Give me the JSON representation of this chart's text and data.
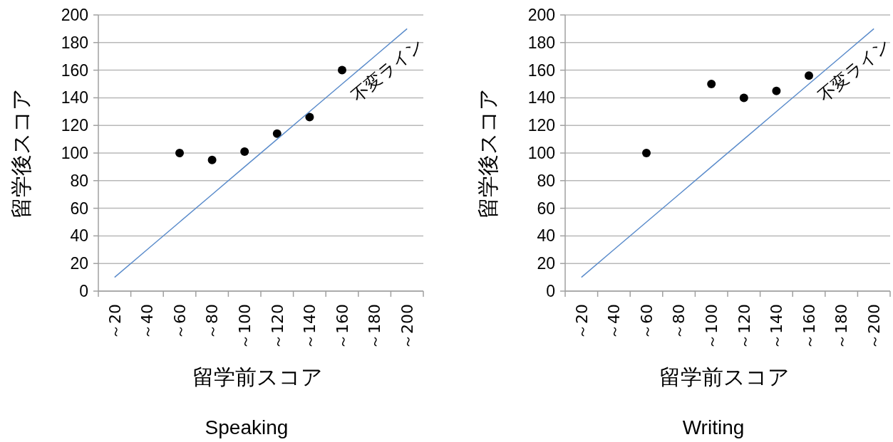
{
  "chart_data": [
    {
      "type": "scatter",
      "title": "Speaking",
      "xlabel": "留学前スコア",
      "ylabel": "留学後スコア",
      "categories": [
        "～20",
        "～40",
        "～60",
        "～80",
        "～100",
        "～120",
        "～140",
        "～160",
        "～180",
        "～200"
      ],
      "ylim": [
        0,
        200
      ],
      "yticks": [
        0,
        20,
        40,
        60,
        80,
        100,
        120,
        140,
        160,
        180,
        200
      ],
      "grid": "y",
      "marker": "circle",
      "series": [
        {
          "color": "#000000",
          "values": [
            null,
            null,
            100,
            95,
            101,
            114,
            126,
            160,
            null,
            null
          ]
        },
        {
          "type": "line",
          "name": "不変ライン",
          "color": "#5b8ccb",
          "marker": "none",
          "values": [
            10,
            30,
            50,
            70,
            90,
            110,
            130,
            150,
            170,
            190
          ]
        }
      ]
    },
    {
      "type": "scatter",
      "title": "Writing",
      "xlabel": "留学前スコア",
      "ylabel": "留学後スコア",
      "categories": [
        "～20",
        "～40",
        "～60",
        "～80",
        "～100",
        "～120",
        "～140",
        "～160",
        "～180",
        "～200"
      ],
      "ylim": [
        0,
        200
      ],
      "yticks": [
        0,
        20,
        40,
        60,
        80,
        100,
        120,
        140,
        160,
        180,
        200
      ],
      "grid": "y",
      "marker": "circle",
      "series": [
        {
          "color": "#000000",
          "values": [
            null,
            null,
            100,
            null,
            150,
            140,
            145,
            156,
            null,
            null
          ]
        },
        {
          "type": "line",
          "name": "不変ライン",
          "color": "#5b8ccb",
          "marker": "none",
          "values": [
            10,
            30,
            50,
            70,
            90,
            110,
            130,
            150,
            170,
            190
          ]
        }
      ]
    }
  ]
}
